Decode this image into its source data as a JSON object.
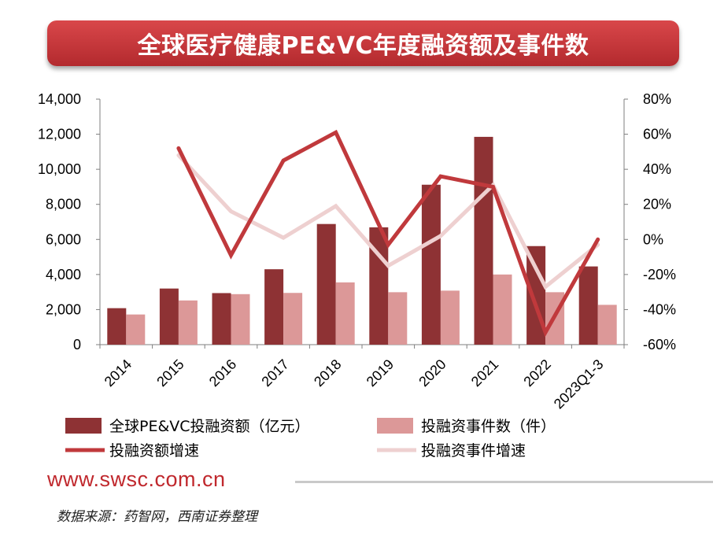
{
  "title": "全球医疗健康PE&VC年度融资额及事件数",
  "chart_data": {
    "type": "bar",
    "categories": [
      "2014",
      "2015",
      "2016",
      "2017",
      "2018",
      "2019",
      "2020",
      "2021",
      "2022",
      "2023Q1-3"
    ],
    "series": [
      {
        "name": "全球PE&VC投融资额（亿元）",
        "type": "bar",
        "axis": "left",
        "color": "#8e3234",
        "values": [
          2080,
          3200,
          2940,
          4300,
          6880,
          6690,
          9120,
          11850,
          5620,
          4460
        ]
      },
      {
        "name": "投融资事件数（件）",
        "type": "bar",
        "axis": "left",
        "color": "#dc9898",
        "values": [
          1720,
          2520,
          2880,
          2950,
          3550,
          2990,
          3080,
          4000,
          2990,
          2270
        ]
      },
      {
        "name": "投融资额增速",
        "type": "line",
        "axis": "right",
        "unit": "%",
        "color": "#c0393c",
        "values": [
          null,
          52,
          -9,
          45,
          61,
          -3,
          36,
          30,
          -53,
          0
        ]
      },
      {
        "name": "投融资事件增速",
        "type": "line",
        "axis": "right",
        "unit": "%",
        "color": "#eed0d0",
        "values": [
          null,
          48,
          16,
          1,
          19,
          -15,
          2,
          31,
          -27,
          -3
        ]
      }
    ],
    "left_axis": {
      "min": 0,
      "max": 14000,
      "ticks": [
        0,
        2000,
        4000,
        6000,
        8000,
        10000,
        12000,
        14000
      ],
      "tick_labels": [
        "0",
        "2,000",
        "4,000",
        "6,000",
        "8,000",
        "10,000",
        "12,000",
        "14,000"
      ]
    },
    "right_axis": {
      "min": -60,
      "max": 80,
      "ticks": [
        -60,
        -40,
        -20,
        0,
        20,
        40,
        60,
        80
      ],
      "tick_labels": [
        "-60%",
        "-40%",
        "-20%",
        "0%",
        "20%",
        "40%",
        "60%",
        "80%"
      ]
    },
    "grid": false,
    "legend_position": "bottom"
  },
  "footer": {
    "url": "www.swsc.com.cn",
    "source": "数据来源：药智网，西南证券整理"
  }
}
